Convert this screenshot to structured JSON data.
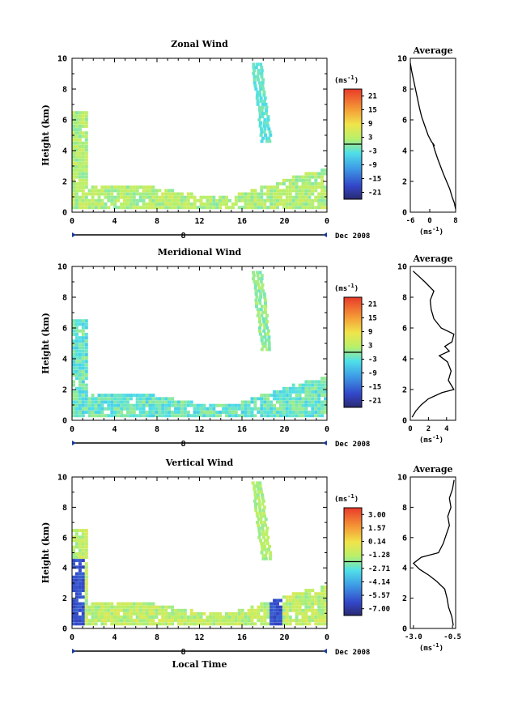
{
  "chart_data": [
    {
      "type": "heatmap",
      "title": "Zonal Wind",
      "ylabel": "Height (km)",
      "xlabel": "",
      "ylim": [
        0,
        10
      ],
      "xlim": [
        0,
        24
      ],
      "x_ticks": [
        "0",
        "4",
        "8",
        "12",
        "16",
        "20",
        "0"
      ],
      "y_ticks": [
        "0",
        "2",
        "4",
        "6",
        "8",
        "10"
      ],
      "date_label": "8",
      "date_right": "Dec 2008",
      "colorbar": {
        "unit_base": "(ms",
        "unit_exp": "-1",
        "unit_close": ")",
        "labels": [
          "21",
          "15",
          "9",
          "3",
          "-3",
          "-9",
          "-15",
          "-21"
        ],
        "range": [
          -24,
          24
        ]
      },
      "average": {
        "title": "Average",
        "xlim": [
          -6,
          8
        ],
        "x_ticks": [
          "-6",
          "0",
          "8"
        ],
        "unit_base": "(ms",
        "unit_exp": "-1",
        "unit_close": ")",
        "profile": [
          [
            8,
            0.2
          ],
          [
            7.6,
            0.6
          ],
          [
            6.9,
            1.0
          ],
          [
            6.2,
            1.5
          ],
          [
            5.2,
            2.0
          ],
          [
            4.2,
            2.5
          ],
          [
            3.3,
            3.0
          ],
          [
            2.4,
            3.5
          ],
          [
            1.6,
            4.0
          ],
          [
            0.9,
            4.5
          ],
          [
            1.5,
            4.3
          ],
          [
            0.5,
            4.6
          ],
          [
            -0.5,
            5.0
          ],
          [
            -1.5,
            5.6
          ],
          [
            -2.5,
            6.2
          ],
          [
            -3.2,
            6.8
          ],
          [
            -3.8,
            7.4
          ],
          [
            -4.4,
            8.0
          ],
          [
            -5.0,
            8.6
          ],
          [
            -5.6,
            9.2
          ],
          [
            -6.0,
            9.7
          ]
        ]
      }
    },
    {
      "type": "heatmap",
      "title": "Meridional Wind",
      "ylabel": "Height (km)",
      "xlabel": "",
      "ylim": [
        0,
        10
      ],
      "xlim": [
        0,
        24
      ],
      "x_ticks": [
        "0",
        "4",
        "8",
        "12",
        "16",
        "20",
        "0"
      ],
      "y_ticks": [
        "0",
        "2",
        "4",
        "6",
        "8",
        "10"
      ],
      "date_label": "8",
      "date_right": "Dec 2008",
      "colorbar": {
        "unit_base": "(ms",
        "unit_exp": "-1",
        "unit_close": ")",
        "labels": [
          "21",
          "15",
          "9",
          "3",
          "-3",
          "-9",
          "-15",
          "-21"
        ],
        "range": [
          -24,
          24
        ]
      },
      "average": {
        "title": "Average",
        "xlim": [
          0,
          5
        ],
        "x_ticks": [
          "0",
          "2",
          "4"
        ],
        "unit_base": "(ms",
        "unit_exp": "-1",
        "unit_close": ")",
        "profile": [
          [
            0.2,
            0.2
          ],
          [
            0.6,
            0.6
          ],
          [
            1.2,
            1.0
          ],
          [
            2.0,
            1.4
          ],
          [
            3.5,
            1.8
          ],
          [
            4.8,
            2.0
          ],
          [
            4.2,
            2.6
          ],
          [
            4.5,
            3.2
          ],
          [
            4.1,
            3.8
          ],
          [
            3.2,
            4.2
          ],
          [
            4.3,
            4.5
          ],
          [
            3.8,
            4.8
          ],
          [
            4.6,
            5.1
          ],
          [
            4.8,
            5.6
          ],
          [
            3.4,
            6.0
          ],
          [
            2.6,
            6.6
          ],
          [
            2.3,
            7.2
          ],
          [
            2.2,
            7.8
          ],
          [
            2.6,
            8.4
          ],
          [
            1.6,
            9.0
          ],
          [
            0.3,
            9.7
          ]
        ]
      }
    },
    {
      "type": "heatmap",
      "title": "Vertical Wind",
      "ylabel": "Height (km)",
      "xlabel": "Local Time",
      "ylim": [
        0,
        10
      ],
      "xlim": [
        0,
        24
      ],
      "x_ticks": [
        "0",
        "4",
        "8",
        "12",
        "16",
        "20",
        "0"
      ],
      "y_ticks": [
        "0",
        "2",
        "4",
        "6",
        "8",
        "10"
      ],
      "date_label": "8",
      "date_right": "Dec 2008",
      "colorbar": {
        "unit_base": "(ms",
        "unit_exp": "-1",
        "unit_close": ")",
        "labels": [
          "3.00",
          "1.57",
          "0.14",
          "-1.28",
          "-2.71",
          "-4.14",
          "-5.57",
          "-7.00"
        ],
        "range": [
          -7.8,
          3.7
        ]
      },
      "average": {
        "title": "Average",
        "xlim": [
          -3.2,
          -0.3
        ],
        "x_ticks": [
          "-3.0",
          "-0.5"
        ],
        "unit_base": "(ms",
        "unit_exp": "-1",
        "unit_close": ")",
        "profile": [
          [
            -0.45,
            0.2
          ],
          [
            -0.55,
            0.8
          ],
          [
            -0.75,
            1.4
          ],
          [
            -0.85,
            2.0
          ],
          [
            -1.0,
            2.6
          ],
          [
            -1.5,
            3.1
          ],
          [
            -2.0,
            3.5
          ],
          [
            -2.6,
            3.9
          ],
          [
            -3.0,
            4.3
          ],
          [
            -2.5,
            4.7
          ],
          [
            -1.4,
            5.0
          ],
          [
            -1.1,
            5.6
          ],
          [
            -0.9,
            6.2
          ],
          [
            -0.7,
            6.8
          ],
          [
            -0.8,
            7.4
          ],
          [
            -0.6,
            8.0
          ],
          [
            -0.7,
            8.6
          ],
          [
            -0.5,
            9.2
          ],
          [
            -0.4,
            9.8
          ]
        ]
      }
    }
  ]
}
